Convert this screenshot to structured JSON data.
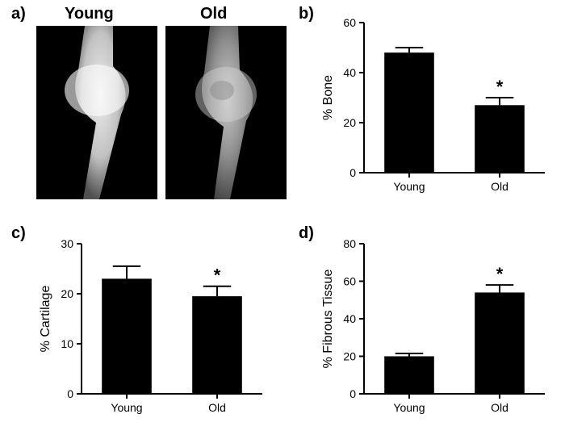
{
  "labels": {
    "a": "a)",
    "b": "b)",
    "c": "c)",
    "d": "d)",
    "young": "Young",
    "old": "Old"
  },
  "panel_a": {
    "type": "image-pair",
    "young_label": "Young",
    "old_label": "Old",
    "background_color": "#000000"
  },
  "chart_b": {
    "type": "bar",
    "ylabel": "% Bone",
    "label_fontsize": 16,
    "categories": [
      "Young",
      "Old"
    ],
    "values": [
      48,
      27
    ],
    "errors": [
      2,
      3
    ],
    "significance": [
      false,
      true
    ],
    "sig_symbol": "*",
    "ylim": [
      0,
      60
    ],
    "ytick_step": 20,
    "bar_color": "#000000",
    "axis_color": "#000000",
    "background_color": "#ffffff",
    "bar_width": 0.55,
    "tick_fontsize": 14,
    "axis_width": 2
  },
  "chart_c": {
    "type": "bar",
    "ylabel": "% Cartilage",
    "label_fontsize": 16,
    "categories": [
      "Young",
      "Old"
    ],
    "values": [
      23,
      19.5
    ],
    "errors": [
      2.5,
      2
    ],
    "significance": [
      false,
      true
    ],
    "sig_symbol": "*",
    "ylim": [
      0,
      30
    ],
    "ytick_step": 10,
    "bar_color": "#000000",
    "axis_color": "#000000",
    "background_color": "#ffffff",
    "bar_width": 0.55,
    "tick_fontsize": 14,
    "axis_width": 2
  },
  "chart_d": {
    "type": "bar",
    "ylabel": "% Fibrous Tissue",
    "label_fontsize": 16,
    "categories": [
      "Young",
      "Old"
    ],
    "values": [
      20,
      54
    ],
    "errors": [
      1.5,
      4
    ],
    "significance": [
      false,
      true
    ],
    "sig_symbol": "*",
    "ylim": [
      0,
      80
    ],
    "ytick_step": 20,
    "bar_color": "#000000",
    "axis_color": "#000000",
    "background_color": "#ffffff",
    "bar_width": 0.55,
    "tick_fontsize": 14,
    "axis_width": 2
  },
  "layout": {
    "figure_width": 700,
    "figure_height": 544
  }
}
